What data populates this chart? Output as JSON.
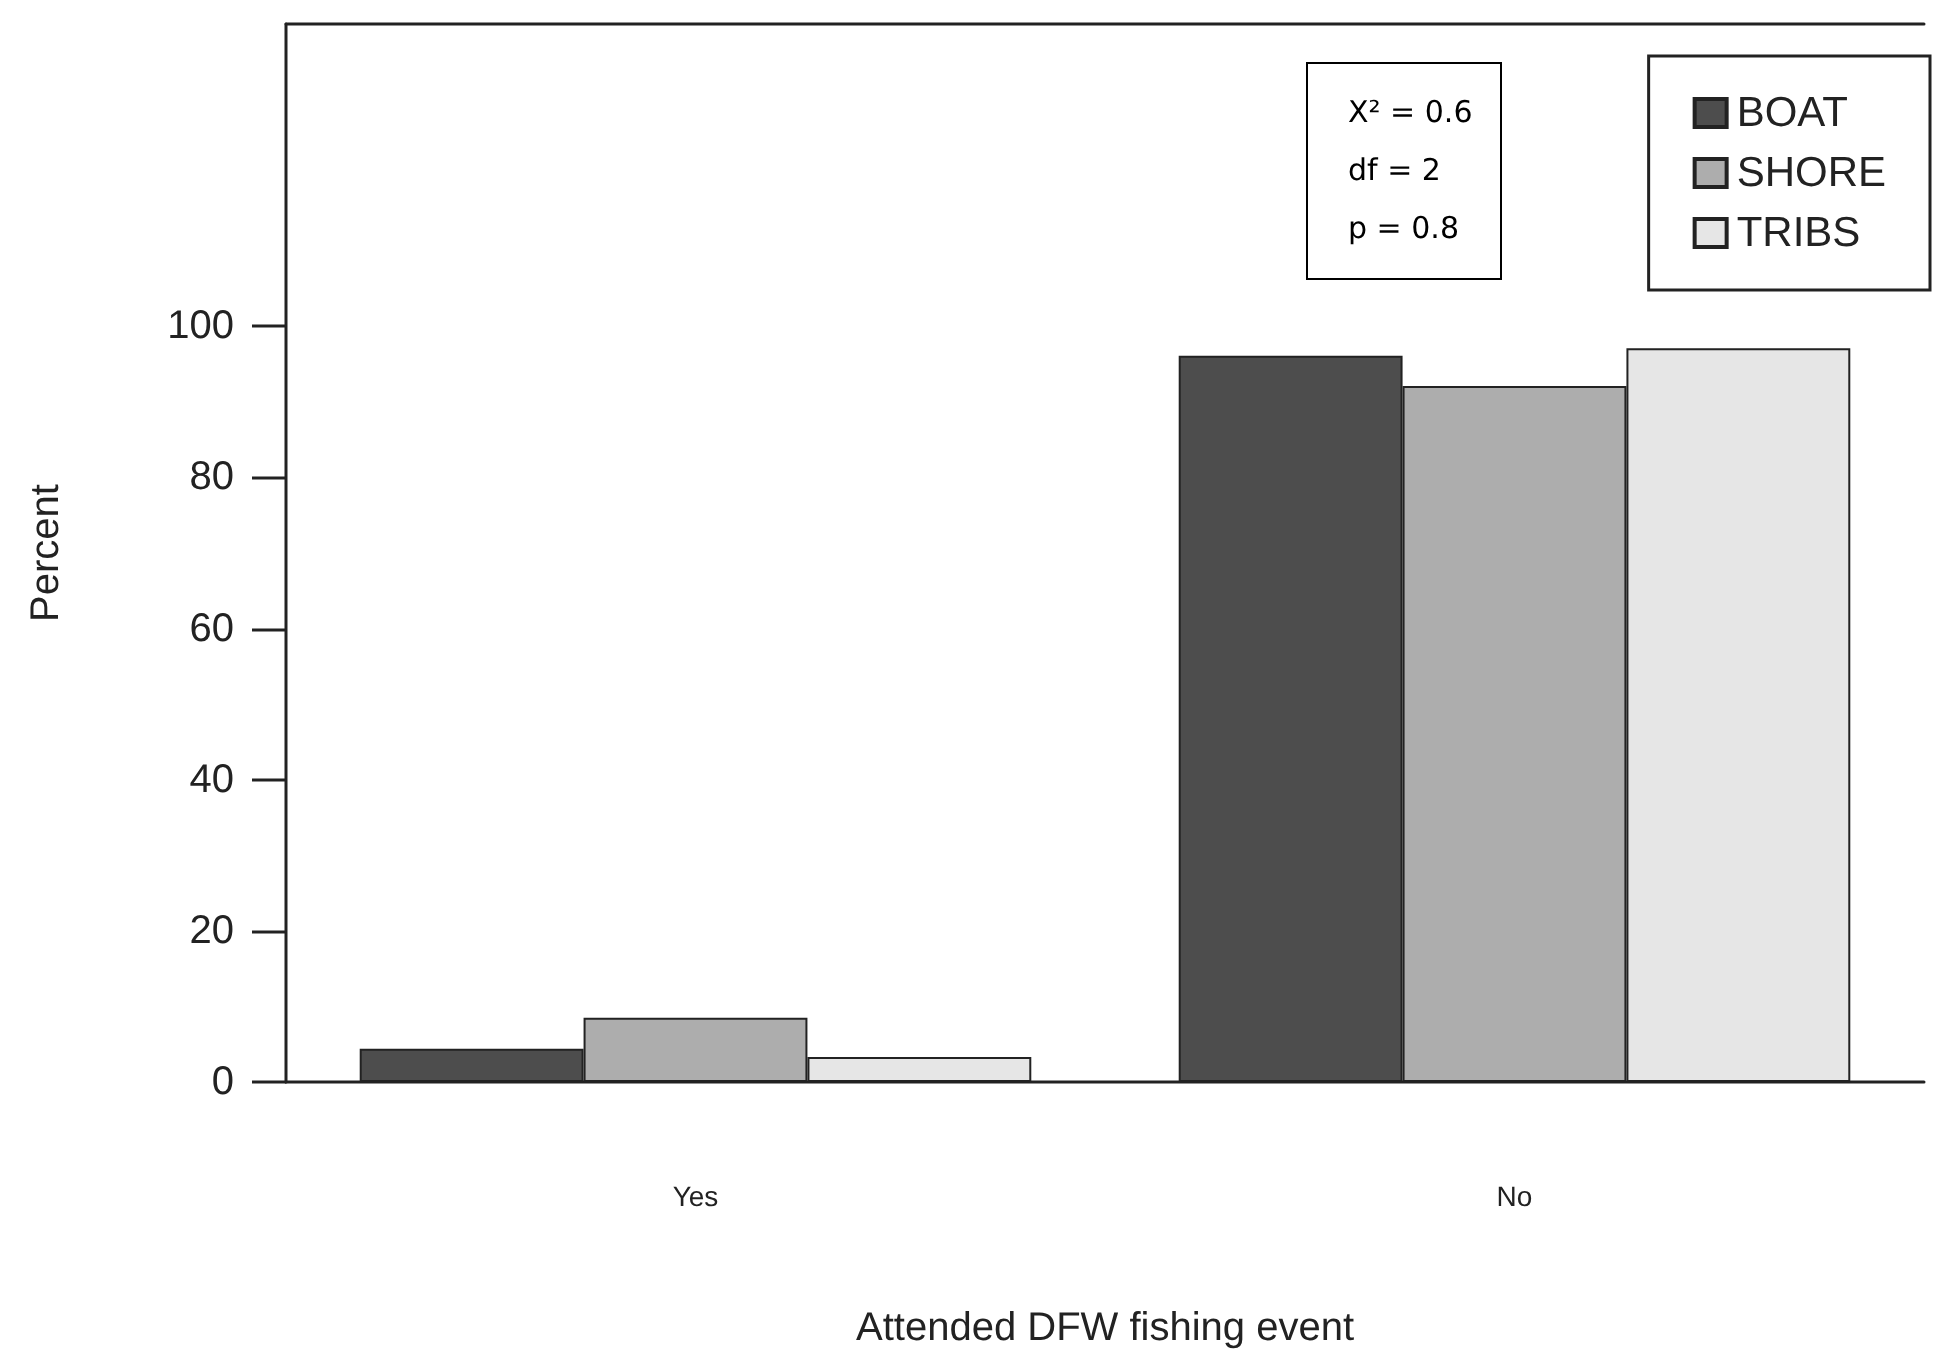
{
  "chart_data": {
    "type": "bar",
    "xlabel": "Attended DFW fishing event",
    "ylabel": "Percent",
    "categories": [
      "Yes",
      "No"
    ],
    "series": [
      {
        "name": "BOAT",
        "color": "#4d4d4d",
        "values": [
          4.4,
          96.1
        ]
      },
      {
        "name": "SHORE",
        "color": "#adadad",
        "values": [
          8.5,
          92.1
        ]
      },
      {
        "name": "TRIBS",
        "color": "#e6e6e6",
        "values": [
          3.3,
          97.1
        ]
      }
    ],
    "ylim": [
      0,
      140
    ],
    "yticks": [
      0,
      20,
      40,
      60,
      80,
      100
    ],
    "annotations": [
      "X² = 0.6",
      "df = 2",
      "p = 0.8"
    ],
    "legend": "top right",
    "grid": false
  }
}
